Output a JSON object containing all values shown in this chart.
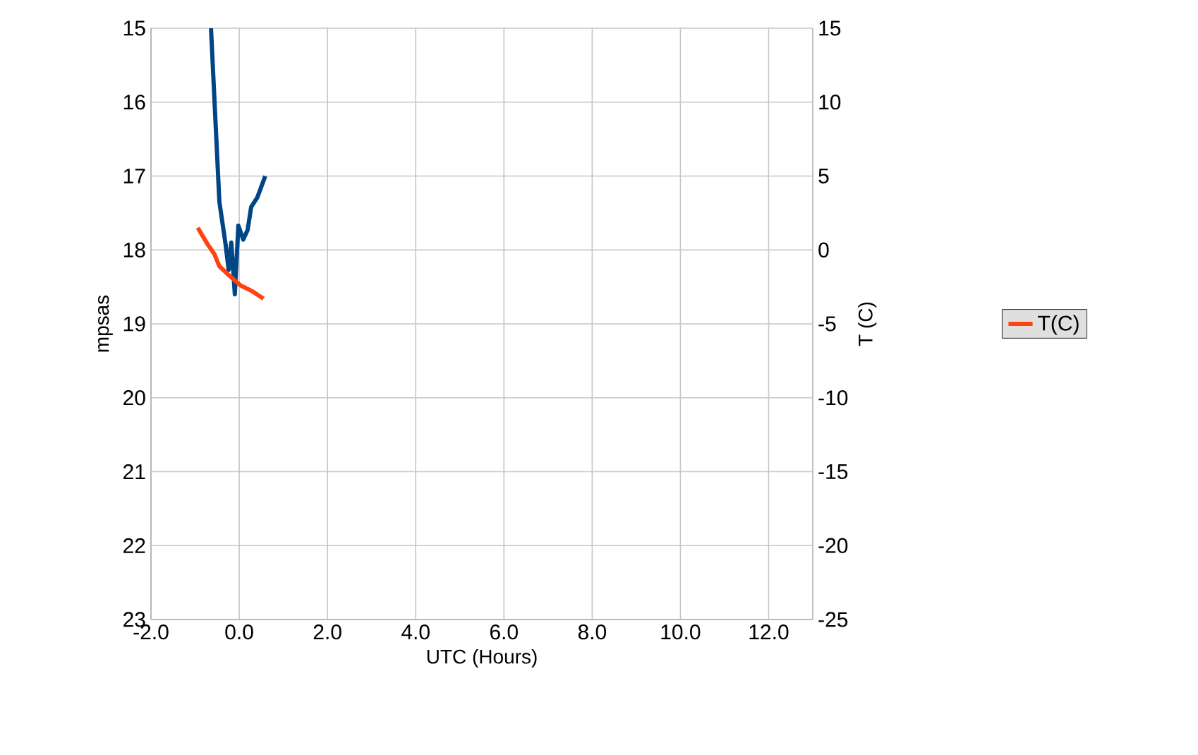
{
  "chart_data": {
    "type": "line",
    "xlabel": "UTC (Hours)",
    "ylabel": "mpsas",
    "y2label": "T (C)",
    "xlim": [
      -2,
      13
    ],
    "xticks": [
      {
        "value": -2,
        "label": "-2.0"
      },
      {
        "value": 0,
        "label": "0.0"
      },
      {
        "value": 2,
        "label": "2.0"
      },
      {
        "value": 4,
        "label": "4.0"
      },
      {
        "value": 6,
        "label": "6.0"
      },
      {
        "value": 8,
        "label": "8.0"
      },
      {
        "value": 10,
        "label": "10.0"
      },
      {
        "value": 12,
        "label": "12.0"
      }
    ],
    "ylim": [
      23,
      15
    ],
    "yticks": [
      15,
      16,
      17,
      18,
      19,
      20,
      21,
      22,
      23
    ],
    "y2lim": [
      -25,
      15
    ],
    "y2ticks": [
      -25,
      -20,
      -15,
      -10,
      -5,
      0,
      5,
      10,
      15
    ],
    "grid": true,
    "legend": "right",
    "marker": "none",
    "line_style": "solid",
    "series": [
      {
        "color": "#004586",
        "x": [
          -0.64,
          -0.45,
          -0.31,
          -0.24,
          -0.18,
          -0.1,
          -0.02,
          0.09,
          0.19,
          0.27,
          0.41,
          0.59
        ],
        "values": [
          15.0,
          17.35,
          17.92,
          18.27,
          17.9,
          18.6,
          17.67,
          17.86,
          17.73,
          17.42,
          17.29,
          17.0
        ]
      },
      {
        "name": "T(C)",
        "color": "#ff420e",
        "axis": "y2",
        "x": [
          -0.94,
          -0.72,
          -0.56,
          -0.45,
          -0.24,
          0.03,
          0.3,
          0.55
        ],
        "values": [
          1.5,
          0.4,
          -0.3,
          -1.1,
          -1.7,
          -2.4,
          -2.8,
          -3.3
        ]
      }
    ]
  }
}
